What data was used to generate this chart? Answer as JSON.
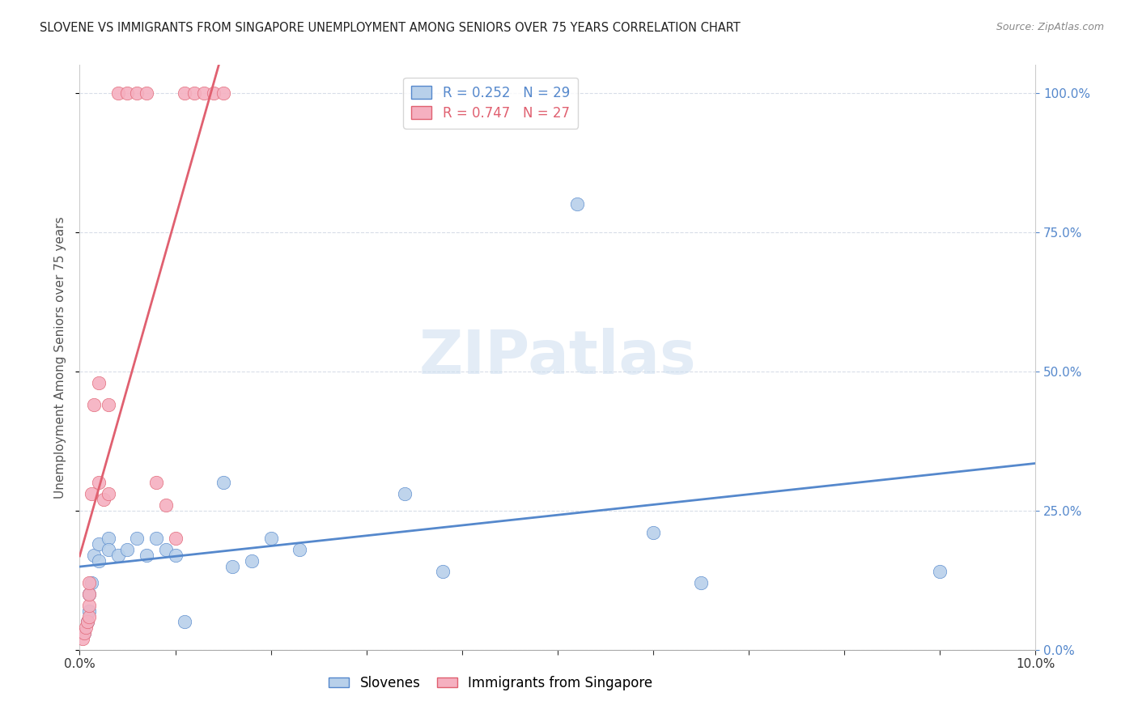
{
  "title": "SLOVENE VS IMMIGRANTS FROM SINGAPORE UNEMPLOYMENT AMONG SENIORS OVER 75 YEARS CORRELATION CHART",
  "source": "Source: ZipAtlas.com",
  "ylabel": "Unemployment Among Seniors over 75 years",
  "watermark": "ZIPatlas",
  "blue_label": "Slovenes",
  "pink_label": "Immigrants from Singapore",
  "blue_R": 0.252,
  "blue_N": 29,
  "pink_R": 0.747,
  "pink_N": 27,
  "blue_color": "#b8d0ea",
  "pink_color": "#f5b0c0",
  "blue_line_color": "#5588cc",
  "pink_line_color": "#e06070",
  "blue_x": [
    0.0005,
    0.0008,
    0.001,
    0.001,
    0.0012,
    0.0015,
    0.002,
    0.002,
    0.003,
    0.003,
    0.004,
    0.005,
    0.006,
    0.007,
    0.008,
    0.009,
    0.01,
    0.011,
    0.015,
    0.016,
    0.018,
    0.02,
    0.023,
    0.034,
    0.038,
    0.052,
    0.06,
    0.065,
    0.09
  ],
  "blue_y": [
    0.03,
    0.05,
    0.07,
    0.1,
    0.12,
    0.17,
    0.16,
    0.19,
    0.2,
    0.18,
    0.17,
    0.18,
    0.2,
    0.17,
    0.2,
    0.18,
    0.17,
    0.05,
    0.3,
    0.15,
    0.16,
    0.2,
    0.18,
    0.28,
    0.14,
    0.8,
    0.21,
    0.12,
    0.14
  ],
  "pink_x": [
    0.0003,
    0.0005,
    0.0006,
    0.0008,
    0.001,
    0.001,
    0.001,
    0.001,
    0.0012,
    0.0015,
    0.002,
    0.002,
    0.0025,
    0.003,
    0.003,
    0.004,
    0.005,
    0.006,
    0.007,
    0.008,
    0.009,
    0.01,
    0.011,
    0.012,
    0.013,
    0.014,
    0.015
  ],
  "pink_y": [
    0.02,
    0.03,
    0.04,
    0.05,
    0.06,
    0.08,
    0.1,
    0.12,
    0.28,
    0.44,
    0.3,
    0.48,
    0.27,
    0.44,
    0.28,
    1.0,
    1.0,
    1.0,
    1.0,
    0.3,
    0.26,
    0.2,
    1.0,
    1.0,
    1.0,
    1.0,
    1.0
  ],
  "xmin": 0.0,
  "xmax": 0.1,
  "ymin": 0.0,
  "ymax": 1.05,
  "ytick_step": 0.25,
  "grid_color": "#d8dde8",
  "title_fontsize": 10.5,
  "source_fontsize": 9,
  "axis_label_fontsize": 11,
  "tick_fontsize": 11,
  "legend_fontsize": 12,
  "scatter_size": 140
}
